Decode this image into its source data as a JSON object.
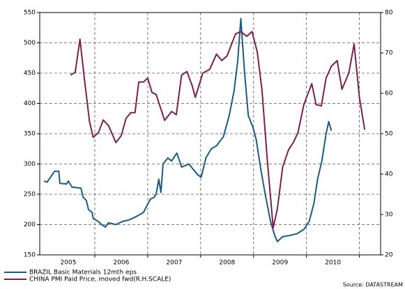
{
  "chart_data": {
    "type": "line",
    "source": "Source: DATASTREAM",
    "xlim": [
      2004.96,
      2011.4
    ],
    "xticks": [
      {
        "value": 2005.5,
        "label": "2005"
      },
      {
        "value": 2006.5,
        "label": "2006"
      },
      {
        "value": 2007.5,
        "label": "2007"
      },
      {
        "value": 2008.5,
        "label": "2008"
      },
      {
        "value": 2009.5,
        "label": "2009"
      },
      {
        "value": 2010.5,
        "label": "2010"
      }
    ],
    "xgrid": [
      2006,
      2007,
      2008,
      2009,
      2010,
      2011
    ],
    "ylim": [
      150,
      550
    ],
    "yticks": [
      150,
      200,
      250,
      300,
      350,
      400,
      450,
      500,
      550
    ],
    "y2lim": [
      20,
      80
    ],
    "y2ticks": [
      20,
      30,
      40,
      50,
      60,
      70,
      80
    ],
    "grid": true,
    "series": [
      {
        "name": "BRAZIL Basic Materials 12mth eps",
        "color": "#1b5a82",
        "axis": "y",
        "x": [
          2005.04,
          2005.1,
          2005.24,
          2005.32,
          2005.34,
          2005.47,
          2005.5,
          2005.57,
          2005.74,
          2005.78,
          2005.84,
          2005.88,
          2005.95,
          2005.97,
          2006.07,
          2006.13,
          2006.2,
          2006.26,
          2006.4,
          2006.52,
          2006.66,
          2006.8,
          2006.92,
          2006.99,
          2007.05,
          2007.12,
          2007.16,
          2007.21,
          2007.25,
          2007.29,
          2007.38,
          2007.45,
          2007.55,
          2007.64,
          2007.78,
          2007.87,
          2007.95,
          2008.01,
          2008.1,
          2008.2,
          2008.3,
          2008.43,
          2008.54,
          2008.63,
          2008.7,
          2008.76,
          2008.83,
          2008.9,
          2008.99,
          2009.05,
          2009.13,
          2009.22,
          2009.32,
          2009.4,
          2009.45,
          2009.55,
          2009.68,
          2009.82,
          2009.95,
          2010.05,
          2010.14,
          2010.21,
          2010.29,
          2010.37,
          2010.42,
          2010.47
        ],
        "values": [
          272,
          270,
          288,
          288,
          268,
          267,
          272,
          262,
          260,
          245,
          240,
          225,
          220,
          210,
          205,
          200,
          196,
          203,
          200,
          205,
          208,
          214,
          220,
          232,
          242,
          245,
          250,
          275,
          253,
          300,
          310,
          305,
          318,
          295,
          300,
          290,
          282,
          278,
          310,
          325,
          330,
          345,
          380,
          420,
          470,
          540,
          450,
          380,
          360,
          340,
          295,
          250,
          205,
          182,
          172,
          180,
          182,
          185,
          192,
          205,
          235,
          275,
          305,
          350,
          370,
          355
        ]
      },
      {
        "name": "CHINA PMI Paid Price, moved fwd(R.H.SCALE)",
        "color": "#7a1f4f",
        "axis": "y2",
        "x": [
          2005.54,
          2005.63,
          2005.72,
          2005.8,
          2005.9,
          2005.97,
          2006.07,
          2006.16,
          2006.26,
          2006.4,
          2006.5,
          2006.59,
          2006.68,
          2006.76,
          2006.83,
          2006.92,
          2007.0,
          2007.08,
          2007.16,
          2007.32,
          2007.45,
          2007.54,
          2007.64,
          2007.74,
          2007.84,
          2007.9,
          2008.04,
          2008.17,
          2008.3,
          2008.4,
          2008.5,
          2008.66,
          2008.76,
          2008.87,
          2008.97,
          2009.07,
          2009.16,
          2009.26,
          2009.37,
          2009.45,
          2009.55,
          2009.66,
          2009.75,
          2009.84,
          2009.95,
          2010.1,
          2010.18,
          2010.28,
          2010.37,
          2010.47,
          2010.58,
          2010.67,
          2010.8,
          2010.9,
          2011.0,
          2011.1
        ],
        "values": [
          64.5,
          65.2,
          73.4,
          64,
          53,
          49.1,
          50.3,
          53.4,
          52,
          47.8,
          49.5,
          53.8,
          55.2,
          55.2,
          62.8,
          62.8,
          63.8,
          60.2,
          59.7,
          53.3,
          55.5,
          54.7,
          64.5,
          65.4,
          61.9,
          59,
          65,
          65.9,
          69.7,
          68.1,
          69.3,
          74.7,
          75.3,
          74.1,
          75.3,
          70.2,
          60.7,
          43.4,
          26.7,
          31.4,
          41.7,
          46,
          47.8,
          50.3,
          57.2,
          62.4,
          57.2,
          56.9,
          63.8,
          66.7,
          68.1,
          61,
          65,
          72.2,
          59,
          51
        ]
      }
    ]
  }
}
